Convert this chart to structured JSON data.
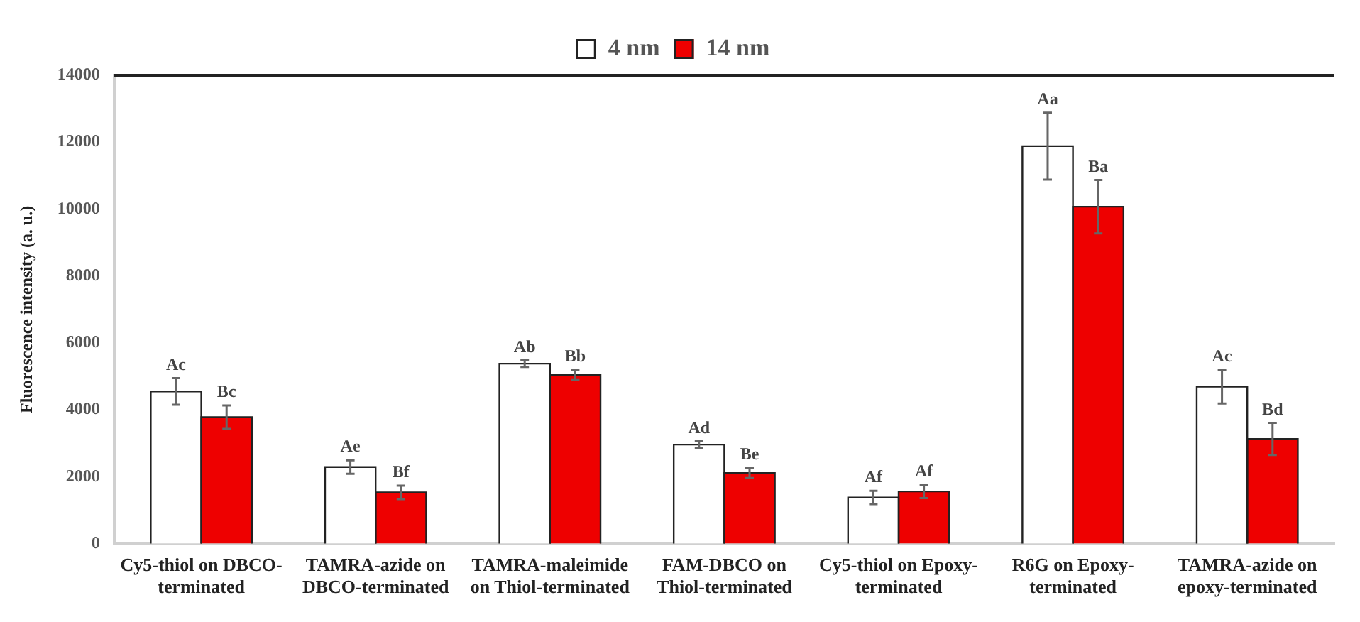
{
  "chart_data": {
    "type": "bar",
    "ylabel": "Fluorescence intensity (a. u.)",
    "categories": [
      "Cy5-thiol on DBCO-terminated",
      "TAMRA-azide on DBCO-terminated",
      "TAMRA-maleimide on Thiol-terminated",
      "FAM-DBCO on Thiol-terminated",
      "Cy5-thiol on Epoxy-terminated",
      "R6G on Epoxy-terminated",
      "TAMRA-azide on epoxy-terminated"
    ],
    "series": [
      {
        "name": "4 nm",
        "color": "#ffffff",
        "values": [
          4550,
          2290,
          5380,
          2960,
          1380,
          11880,
          4690
        ],
        "errors": [
          400,
          200,
          100,
          100,
          200,
          1000,
          500
        ],
        "value_labels": [
          "Ac",
          "Ae",
          "Ab",
          "Ad",
          "Af",
          "Aa",
          "Ac"
        ]
      },
      {
        "name": "14 nm",
        "color": "#ee0000",
        "values": [
          3780,
          1530,
          5040,
          2110,
          1560,
          10070,
          3130
        ],
        "errors": [
          350,
          200,
          150,
          150,
          200,
          800,
          480
        ],
        "value_labels": [
          "Bc",
          "Bf",
          "Bb",
          "Be",
          "Af",
          "Ba",
          "Bd"
        ]
      }
    ],
    "ylim": [
      0,
      14000
    ],
    "yticks": [
      0,
      2000,
      4000,
      6000,
      8000,
      10000,
      12000,
      14000
    ],
    "grid": false,
    "legend": "top"
  }
}
